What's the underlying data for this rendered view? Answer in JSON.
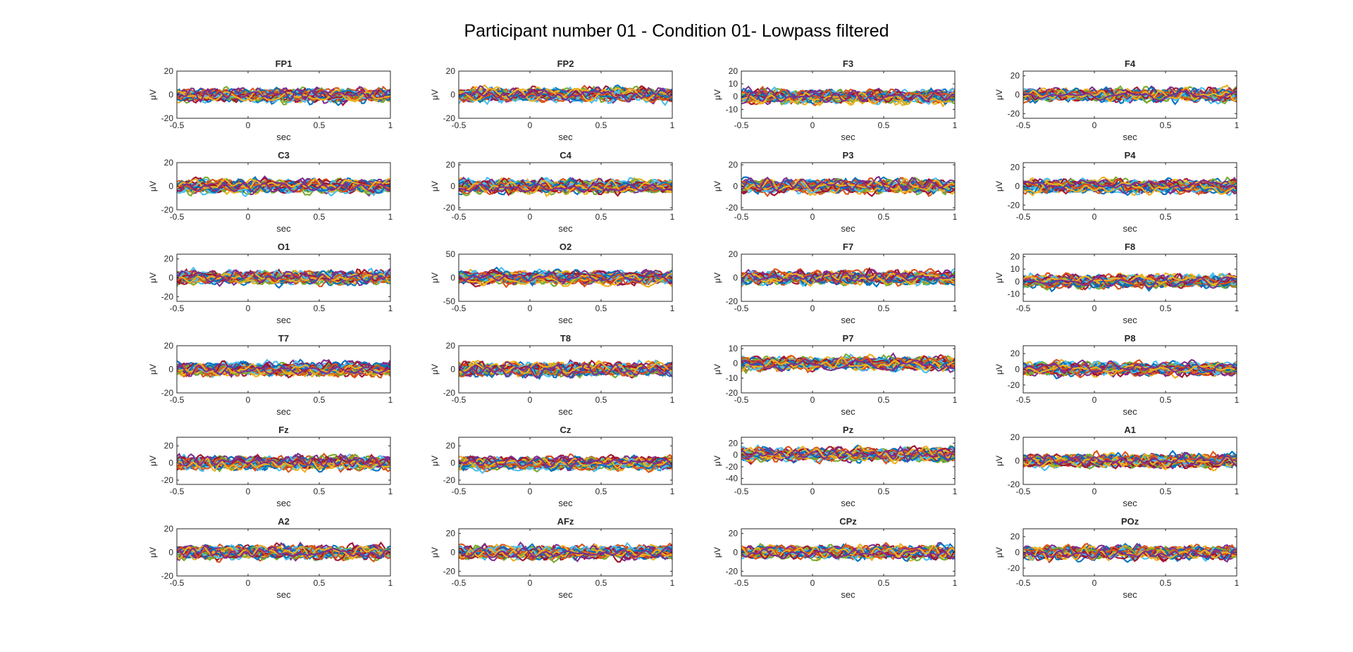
{
  "figure": {
    "title": "Participant number 01 - Condition 01- Lowpass filtered"
  },
  "line_colors": [
    "#0072BD",
    "#D95319",
    "#EDB120",
    "#7E2F8E",
    "#77AC30",
    "#4DBEEE",
    "#A2142F"
  ],
  "chart_data": [
    {
      "type": "line",
      "title": "FP1",
      "xlabel": "sec",
      "ylabel": "μV",
      "xlim": [
        -0.5,
        1
      ],
      "ylim": [
        -20,
        20
      ],
      "xticks": [
        -0.5,
        0,
        0.5,
        1
      ],
      "xtick_labels": [
        "-0.5",
        "0",
        "0.5",
        "1"
      ],
      "yticks": [
        -20,
        0,
        20
      ],
      "ytick_labels": [
        "-20",
        "0",
        "20"
      ],
      "grid": false,
      "legend": "none"
    },
    {
      "type": "line",
      "title": "FP2",
      "xlabel": "sec",
      "ylabel": "μV",
      "xlim": [
        -0.5,
        1
      ],
      "ylim": [
        -20,
        20
      ],
      "xticks": [
        -0.5,
        0,
        0.5,
        1
      ],
      "xtick_labels": [
        "-0.5",
        "0",
        "0.5",
        "1"
      ],
      "yticks": [
        -20,
        0,
        20
      ],
      "ytick_labels": [
        "-20",
        "0",
        "20"
      ],
      "grid": false,
      "legend": "none"
    },
    {
      "type": "line",
      "title": "F3",
      "xlabel": "sec",
      "ylabel": "μV",
      "xlim": [
        -0.5,
        1
      ],
      "ylim": [
        -17,
        20
      ],
      "xticks": [
        -0.5,
        0,
        0.5,
        1
      ],
      "xtick_labels": [
        "-0.5",
        "0",
        "0.5",
        "1"
      ],
      "yticks": [
        -10,
        0,
        10,
        20
      ],
      "ytick_labels": [
        "-10",
        "0",
        "10",
        "20"
      ],
      "grid": false,
      "legend": "none"
    },
    {
      "type": "line",
      "title": "F4",
      "xlabel": "sec",
      "ylabel": "μV",
      "xlim": [
        -0.5,
        1
      ],
      "ylim": [
        -25,
        25
      ],
      "xticks": [
        -0.5,
        0,
        0.5,
        1
      ],
      "xtick_labels": [
        "-0.5",
        "0",
        "0.5",
        "1"
      ],
      "yticks": [
        -20,
        0,
        20
      ],
      "ytick_labels": [
        "-20",
        "0",
        "20"
      ],
      "grid": false,
      "legend": "none"
    },
    {
      "type": "line",
      "title": "C3",
      "xlabel": "sec",
      "ylabel": "μV",
      "xlim": [
        -0.5,
        1
      ],
      "ylim": [
        -20,
        20
      ],
      "xticks": [
        -0.5,
        0,
        0.5,
        1
      ],
      "xtick_labels": [
        "-0.5",
        "0",
        "0.5",
        "1"
      ],
      "yticks": [
        -20,
        0,
        20
      ],
      "ytick_labels": [
        "-20",
        "0",
        "20"
      ],
      "grid": false,
      "legend": "none"
    },
    {
      "type": "line",
      "title": "C4",
      "xlabel": "sec",
      "ylabel": "μV",
      "xlim": [
        -0.5,
        1
      ],
      "ylim": [
        -22,
        22
      ],
      "xticks": [
        -0.5,
        0,
        0.5,
        1
      ],
      "xtick_labels": [
        "-0.5",
        "0",
        "0.5",
        "1"
      ],
      "yticks": [
        -20,
        0,
        20
      ],
      "ytick_labels": [
        "-20",
        "0",
        "20"
      ],
      "grid": false,
      "legend": "none"
    },
    {
      "type": "line",
      "title": "P3",
      "xlabel": "sec",
      "ylabel": "μV",
      "xlim": [
        -0.5,
        1
      ],
      "ylim": [
        -22,
        22
      ],
      "xticks": [
        -0.5,
        0,
        0.5,
        1
      ],
      "xtick_labels": [
        "-0.5",
        "0",
        "0.5",
        "1"
      ],
      "yticks": [
        -20,
        0,
        20
      ],
      "ytick_labels": [
        "-20",
        "0",
        "20"
      ],
      "grid": false,
      "legend": "none"
    },
    {
      "type": "line",
      "title": "P4",
      "xlabel": "sec",
      "ylabel": "μV",
      "xlim": [
        -0.5,
        1
      ],
      "ylim": [
        -25,
        25
      ],
      "xticks": [
        -0.5,
        0,
        0.5,
        1
      ],
      "xtick_labels": [
        "-0.5",
        "0",
        "0.5",
        "1"
      ],
      "yticks": [
        -20,
        0,
        20
      ],
      "ytick_labels": [
        "-20",
        "0",
        "20"
      ],
      "grid": false,
      "legend": "none"
    },
    {
      "type": "line",
      "title": "O1",
      "xlabel": "sec",
      "ylabel": "μV",
      "xlim": [
        -0.5,
        1
      ],
      "ylim": [
        -25,
        25
      ],
      "xticks": [
        -0.5,
        0,
        0.5,
        1
      ],
      "xtick_labels": [
        "-0.5",
        "0",
        "0.5",
        "1"
      ],
      "yticks": [
        -20,
        0,
        20
      ],
      "ytick_labels": [
        "-20",
        "0",
        "20"
      ],
      "grid": false,
      "legend": "none"
    },
    {
      "type": "line",
      "title": "O2",
      "xlabel": "sec",
      "ylabel": "μV",
      "xlim": [
        -0.5,
        1
      ],
      "ylim": [
        -50,
        50
      ],
      "xticks": [
        -0.5,
        0,
        0.5,
        1
      ],
      "xtick_labels": [
        "-0.5",
        "0",
        "0.5",
        "1"
      ],
      "yticks": [
        -50,
        0,
        50
      ],
      "ytick_labels": [
        "-50",
        "0",
        "50"
      ],
      "grid": false,
      "legend": "none"
    },
    {
      "type": "line",
      "title": "F7",
      "xlabel": "sec",
      "ylabel": "μV",
      "xlim": [
        -0.5,
        1
      ],
      "ylim": [
        -20,
        20
      ],
      "xticks": [
        -0.5,
        0,
        0.5,
        1
      ],
      "xtick_labels": [
        "-0.5",
        "0",
        "0.5",
        "1"
      ],
      "yticks": [
        -20,
        0,
        20
      ],
      "ytick_labels": [
        "-20",
        "0",
        "20"
      ],
      "grid": false,
      "legend": "none"
    },
    {
      "type": "line",
      "title": "F8",
      "xlabel": "sec",
      "ylabel": "μV",
      "xlim": [
        -0.5,
        1
      ],
      "ylim": [
        -16,
        22
      ],
      "xticks": [
        -0.5,
        0,
        0.5,
        1
      ],
      "xtick_labels": [
        "-0.5",
        "0",
        "0.5",
        "1"
      ],
      "yticks": [
        -10,
        0,
        10,
        20
      ],
      "ytick_labels": [
        "-10",
        "0",
        "10",
        "20"
      ],
      "grid": false,
      "legend": "none"
    },
    {
      "type": "line",
      "title": "T7",
      "xlabel": "sec",
      "ylabel": "μV",
      "xlim": [
        -0.5,
        1
      ],
      "ylim": [
        -20,
        20
      ],
      "xticks": [
        -0.5,
        0,
        0.5,
        1
      ],
      "xtick_labels": [
        "-0.5",
        "0",
        "0.5",
        "1"
      ],
      "yticks": [
        -20,
        0,
        20
      ],
      "ytick_labels": [
        "-20",
        "0",
        "20"
      ],
      "grid": false,
      "legend": "none"
    },
    {
      "type": "line",
      "title": "T8",
      "xlabel": "sec",
      "ylabel": "μV",
      "xlim": [
        -0.5,
        1
      ],
      "ylim": [
        -20,
        20
      ],
      "xticks": [
        -0.5,
        0,
        0.5,
        1
      ],
      "xtick_labels": [
        "-0.5",
        "0",
        "0.5",
        "1"
      ],
      "yticks": [
        -20,
        0,
        20
      ],
      "ytick_labels": [
        "-20",
        "0",
        "20"
      ],
      "grid": false,
      "legend": "none"
    },
    {
      "type": "line",
      "title": "P7",
      "xlabel": "sec",
      "ylabel": "μV",
      "xlim": [
        -0.5,
        1
      ],
      "ylim": [
        -20,
        12
      ],
      "xticks": [
        -0.5,
        0,
        0.5,
        1
      ],
      "xtick_labels": [
        "-0.5",
        "0",
        "0.5",
        "1"
      ],
      "yticks": [
        -20,
        -10,
        0,
        10
      ],
      "ytick_labels": [
        "-20",
        "-10",
        "0",
        "10"
      ],
      "grid": false,
      "legend": "none"
    },
    {
      "type": "line",
      "title": "P8",
      "xlabel": "sec",
      "ylabel": "μV",
      "xlim": [
        -0.5,
        1
      ],
      "ylim": [
        -30,
        30
      ],
      "xticks": [
        -0.5,
        0,
        0.5,
        1
      ],
      "xtick_labels": [
        "-0.5",
        "0",
        "0.5",
        "1"
      ],
      "yticks": [
        -20,
        0,
        20
      ],
      "ytick_labels": [
        "-20",
        "0",
        "20"
      ],
      "grid": false,
      "legend": "none"
    },
    {
      "type": "line",
      "title": "Fz",
      "xlabel": "sec",
      "ylabel": "μV",
      "xlim": [
        -0.5,
        1
      ],
      "ylim": [
        -25,
        30
      ],
      "xticks": [
        -0.5,
        0,
        0.5,
        1
      ],
      "xtick_labels": [
        "-0.5",
        "0",
        "0.5",
        "1"
      ],
      "yticks": [
        -20,
        0,
        20
      ],
      "ytick_labels": [
        "-20",
        "0",
        "20"
      ],
      "grid": false,
      "legend": "none"
    },
    {
      "type": "line",
      "title": "Cz",
      "xlabel": "sec",
      "ylabel": "μV",
      "xlim": [
        -0.5,
        1
      ],
      "ylim": [
        -25,
        30
      ],
      "xticks": [
        -0.5,
        0,
        0.5,
        1
      ],
      "xtick_labels": [
        "-0.5",
        "0",
        "0.5",
        "1"
      ],
      "yticks": [
        -20,
        0,
        20
      ],
      "ytick_labels": [
        "-20",
        "0",
        "20"
      ],
      "grid": false,
      "legend": "none"
    },
    {
      "type": "line",
      "title": "Pz",
      "xlabel": "sec",
      "ylabel": "μV",
      "xlim": [
        -0.5,
        1
      ],
      "ylim": [
        -50,
        30
      ],
      "xticks": [
        -0.5,
        0,
        0.5,
        1
      ],
      "xtick_labels": [
        "-0.5",
        "0",
        "0.5",
        "1"
      ],
      "yticks": [
        -40,
        -20,
        0,
        20
      ],
      "ytick_labels": [
        "-40",
        "-20",
        "0",
        "20"
      ],
      "grid": false,
      "legend": "none"
    },
    {
      "type": "line",
      "title": "A1",
      "xlabel": "sec",
      "ylabel": "μV",
      "xlim": [
        -0.5,
        1
      ],
      "ylim": [
        -20,
        20
      ],
      "xticks": [
        -0.5,
        0,
        0.5,
        1
      ],
      "xtick_labels": [
        "-0.5",
        "0",
        "0.5",
        "1"
      ],
      "yticks": [
        -20,
        0,
        20
      ],
      "ytick_labels": [
        "-20",
        "0",
        "20"
      ],
      "grid": false,
      "legend": "none"
    },
    {
      "type": "line",
      "title": "A2",
      "xlabel": "sec",
      "ylabel": "μV",
      "xlim": [
        -0.5,
        1
      ],
      "ylim": [
        -20,
        20
      ],
      "xticks": [
        -0.5,
        0,
        0.5,
        1
      ],
      "xtick_labels": [
        "-0.5",
        "0",
        "0.5",
        "1"
      ],
      "yticks": [
        -20,
        0,
        20
      ],
      "ytick_labels": [
        "-20",
        "0",
        "20"
      ],
      "grid": false,
      "legend": "none"
    },
    {
      "type": "line",
      "title": "AFz",
      "xlabel": "sec",
      "ylabel": "μV",
      "xlim": [
        -0.5,
        1
      ],
      "ylim": [
        -25,
        25
      ],
      "xticks": [
        -0.5,
        0,
        0.5,
        1
      ],
      "xtick_labels": [
        "-0.5",
        "0",
        "0.5",
        "1"
      ],
      "yticks": [
        -20,
        0,
        20
      ],
      "ytick_labels": [
        "-20",
        "0",
        "20"
      ],
      "grid": false,
      "legend": "none"
    },
    {
      "type": "line",
      "title": "CPz",
      "xlabel": "sec",
      "ylabel": "μV",
      "xlim": [
        -0.5,
        1
      ],
      "ylim": [
        -25,
        25
      ],
      "xticks": [
        -0.5,
        0,
        0.5,
        1
      ],
      "xtick_labels": [
        "-0.5",
        "0",
        "0.5",
        "1"
      ],
      "yticks": [
        -20,
        0,
        20
      ],
      "ytick_labels": [
        "-20",
        "0",
        "20"
      ],
      "grid": false,
      "legend": "none"
    },
    {
      "type": "line",
      "title": "POz",
      "xlabel": "sec",
      "ylabel": "μV",
      "xlim": [
        -0.5,
        1
      ],
      "ylim": [
        -30,
        30
      ],
      "xticks": [
        -0.5,
        0,
        0.5,
        1
      ],
      "xtick_labels": [
        "-0.5",
        "0",
        "0.5",
        "1"
      ],
      "yticks": [
        -20,
        0,
        20
      ],
      "ytick_labels": [
        "-20",
        "0",
        "20"
      ],
      "grid": false,
      "legend": "none"
    }
  ]
}
